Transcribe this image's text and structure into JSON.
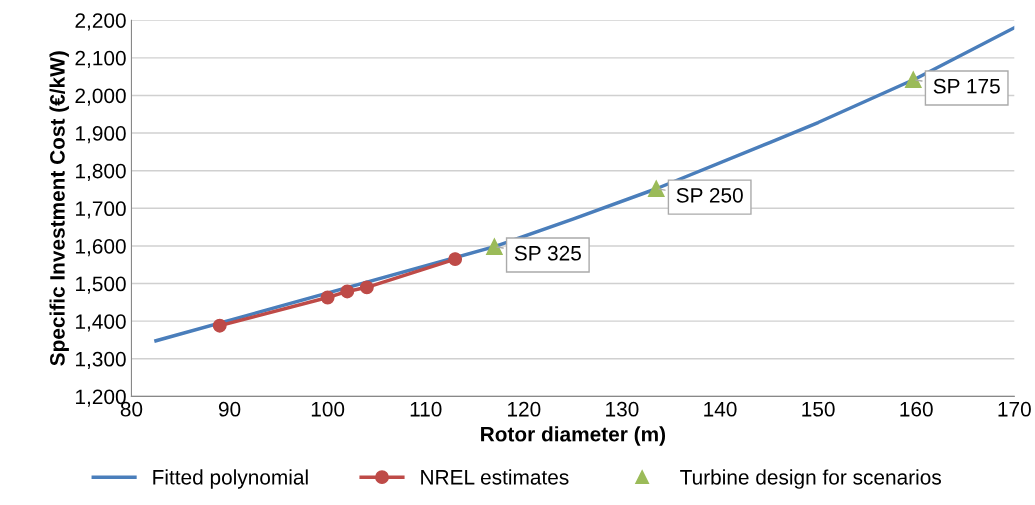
{
  "chart_data": {
    "type": "line",
    "xlabel": "Rotor diameter (m)",
    "ylabel": "Specific Investment Cost (€/kW)",
    "xlim": [
      80,
      170
    ],
    "xticks": [
      80,
      90,
      100,
      110,
      120,
      130,
      140,
      150,
      160,
      170
    ],
    "ylim": [
      1200,
      2200
    ],
    "yticks": [
      {
        "value": 1200,
        "label": "1,200"
      },
      {
        "value": 1300,
        "label": "1,300"
      },
      {
        "value": 1400,
        "label": "1,400"
      },
      {
        "value": 1500,
        "label": "1,500"
      },
      {
        "value": 1600,
        "label": "1,600"
      },
      {
        "value": 1700,
        "label": "1,700"
      },
      {
        "value": 1800,
        "label": "1,800"
      },
      {
        "value": 1900,
        "label": "1,900"
      },
      {
        "value": 2000,
        "label": "2,000"
      },
      {
        "value": 2100,
        "label": "2,100"
      },
      {
        "value": 2200,
        "label": "2,200"
      }
    ],
    "grid": "y",
    "legend": "bottom",
    "series": [
      {
        "name": "Fitted polynomial",
        "color": "#4a7ebb",
        "marker": "none",
        "x": [
          82.5,
          117,
          125,
          133.5,
          145,
          150,
          160,
          170
        ],
        "values": [
          1348,
          1598,
          1671,
          1752,
          1874,
          1928,
          2045,
          2180
        ]
      },
      {
        "name": "NREL estimates",
        "color": "#be4b48",
        "marker": "circle",
        "x": [
          89,
          100,
          102,
          104,
          113
        ],
        "values": [
          1388,
          1463,
          1479,
          1490,
          1565
        ]
      },
      {
        "name": "Turbine design for scenarios",
        "type": "scatter",
        "color": "#9bbb59",
        "marker": "triangle",
        "x": [
          117,
          133.5,
          159.7
        ],
        "values": [
          1598,
          1752,
          2042
        ]
      }
    ],
    "annotations": [
      {
        "text": "SP 325",
        "x": 117,
        "y": 1598
      },
      {
        "text": "SP 250",
        "x": 133.5,
        "y": 1752
      },
      {
        "text": "SP 175",
        "x": 159.7,
        "y": 2042
      }
    ]
  }
}
